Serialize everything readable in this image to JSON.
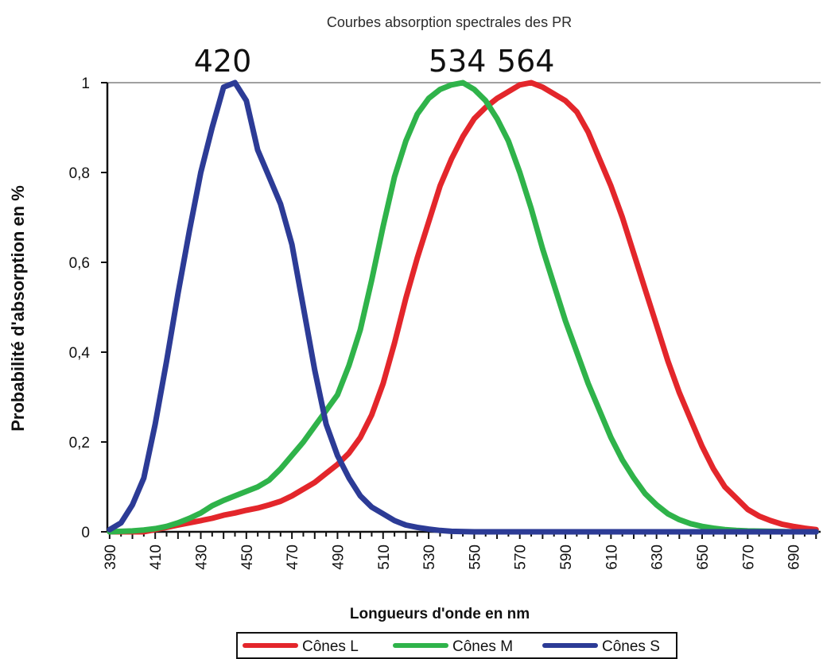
{
  "chart_data": {
    "type": "line",
    "title": "Courbes absorption spectrales des PR",
    "xlabel": "Longueurs d'onde en nm",
    "ylabel": "Probabilité d'absorption en %",
    "xlim": [
      389,
      702
    ],
    "ylim": [
      0,
      1
    ],
    "x_ticks": [
      "390",
      "410",
      "430",
      "450",
      "470",
      "490",
      "510",
      "530",
      "550",
      "570",
      "590",
      "610",
      "630",
      "650",
      "670",
      "690"
    ],
    "y_ticks": [
      "0",
      "0,2",
      "0,4",
      "0,6",
      "0,8",
      "1"
    ],
    "y_tick_values": [
      0,
      0.2,
      0.4,
      0.6,
      0.8,
      1
    ],
    "grid": false,
    "legend_position": "bottom",
    "peak_labels": [
      {
        "label": "420",
        "x": 441
      },
      {
        "label": "534",
        "x": 544
      },
      {
        "label": "564",
        "x": 574
      }
    ],
    "series": [
      {
        "name": "Cônes L",
        "color": "#e3262b",
        "points": [
          [
            390,
            0
          ],
          [
            395,
            0
          ],
          [
            400,
            0
          ],
          [
            405,
            0
          ],
          [
            410,
            0.005
          ],
          [
            415,
            0.01
          ],
          [
            420,
            0.015
          ],
          [
            425,
            0.02
          ],
          [
            430,
            0.025
          ],
          [
            435,
            0.03
          ],
          [
            440,
            0.037
          ],
          [
            445,
            0.042
          ],
          [
            450,
            0.048
          ],
          [
            455,
            0.053
          ],
          [
            460,
            0.06
          ],
          [
            465,
            0.068
          ],
          [
            470,
            0.08
          ],
          [
            475,
            0.095
          ],
          [
            480,
            0.11
          ],
          [
            485,
            0.13
          ],
          [
            490,
            0.15
          ],
          [
            495,
            0.175
          ],
          [
            500,
            0.21
          ],
          [
            505,
            0.26
          ],
          [
            510,
            0.33
          ],
          [
            515,
            0.42
          ],
          [
            520,
            0.52
          ],
          [
            525,
            0.61
          ],
          [
            530,
            0.69
          ],
          [
            535,
            0.77
          ],
          [
            540,
            0.83
          ],
          [
            545,
            0.88
          ],
          [
            550,
            0.92
          ],
          [
            555,
            0.945
          ],
          [
            560,
            0.965
          ],
          [
            565,
            0.98
          ],
          [
            570,
            0.995
          ],
          [
            575,
            1.0
          ],
          [
            580,
            0.99
          ],
          [
            585,
            0.975
          ],
          [
            590,
            0.96
          ],
          [
            595,
            0.935
          ],
          [
            600,
            0.89
          ],
          [
            605,
            0.83
          ],
          [
            610,
            0.77
          ],
          [
            615,
            0.7
          ],
          [
            620,
            0.62
          ],
          [
            625,
            0.54
          ],
          [
            630,
            0.46
          ],
          [
            635,
            0.38
          ],
          [
            640,
            0.31
          ],
          [
            645,
            0.25
          ],
          [
            650,
            0.19
          ],
          [
            655,
            0.14
          ],
          [
            660,
            0.1
          ],
          [
            665,
            0.075
          ],
          [
            670,
            0.05
          ],
          [
            675,
            0.035
          ],
          [
            680,
            0.025
          ],
          [
            685,
            0.017
          ],
          [
            690,
            0.012
          ],
          [
            695,
            0.008
          ],
          [
            700,
            0.005
          ]
        ]
      },
      {
        "name": "Cônes M",
        "color": "#2fb34a",
        "points": [
          [
            390,
            0
          ],
          [
            395,
            0.001
          ],
          [
            400,
            0.002
          ],
          [
            405,
            0.004
          ],
          [
            410,
            0.007
          ],
          [
            415,
            0.012
          ],
          [
            420,
            0.02
          ],
          [
            425,
            0.03
          ],
          [
            430,
            0.042
          ],
          [
            435,
            0.058
          ],
          [
            440,
            0.07
          ],
          [
            445,
            0.08
          ],
          [
            450,
            0.09
          ],
          [
            455,
            0.1
          ],
          [
            460,
            0.115
          ],
          [
            465,
            0.14
          ],
          [
            470,
            0.17
          ],
          [
            475,
            0.2
          ],
          [
            480,
            0.235
          ],
          [
            485,
            0.27
          ],
          [
            490,
            0.305
          ],
          [
            495,
            0.37
          ],
          [
            500,
            0.45
          ],
          [
            505,
            0.56
          ],
          [
            510,
            0.68
          ],
          [
            515,
            0.79
          ],
          [
            520,
            0.87
          ],
          [
            525,
            0.93
          ],
          [
            530,
            0.965
          ],
          [
            535,
            0.985
          ],
          [
            540,
            0.995
          ],
          [
            545,
            1.0
          ],
          [
            550,
            0.985
          ],
          [
            555,
            0.96
          ],
          [
            560,
            0.92
          ],
          [
            565,
            0.87
          ],
          [
            570,
            0.8
          ],
          [
            575,
            0.72
          ],
          [
            580,
            0.63
          ],
          [
            585,
            0.55
          ],
          [
            590,
            0.47
          ],
          [
            595,
            0.4
          ],
          [
            600,
            0.33
          ],
          [
            605,
            0.27
          ],
          [
            610,
            0.21
          ],
          [
            615,
            0.16
          ],
          [
            620,
            0.12
          ],
          [
            625,
            0.085
          ],
          [
            630,
            0.06
          ],
          [
            635,
            0.04
          ],
          [
            640,
            0.027
          ],
          [
            645,
            0.018
          ],
          [
            650,
            0.012
          ],
          [
            655,
            0.008
          ],
          [
            660,
            0.005
          ],
          [
            665,
            0.003
          ],
          [
            670,
            0.002
          ],
          [
            680,
            0.001
          ],
          [
            690,
            0
          ],
          [
            700,
            0
          ]
        ]
      },
      {
        "name": "Cônes S",
        "color": "#2c3b96",
        "points": [
          [
            390,
            0.005
          ],
          [
            395,
            0.02
          ],
          [
            400,
            0.06
          ],
          [
            405,
            0.12
          ],
          [
            410,
            0.24
          ],
          [
            415,
            0.38
          ],
          [
            420,
            0.53
          ],
          [
            425,
            0.67
          ],
          [
            430,
            0.8
          ],
          [
            435,
            0.9
          ],
          [
            440,
            0.99
          ],
          [
            445,
            1.0
          ],
          [
            450,
            0.96
          ],
          [
            455,
            0.85
          ],
          [
            460,
            0.79
          ],
          [
            465,
            0.73
          ],
          [
            470,
            0.64
          ],
          [
            475,
            0.5
          ],
          [
            480,
            0.36
          ],
          [
            485,
            0.24
          ],
          [
            490,
            0.17
          ],
          [
            495,
            0.12
          ],
          [
            500,
            0.08
          ],
          [
            505,
            0.055
          ],
          [
            510,
            0.04
          ],
          [
            515,
            0.025
          ],
          [
            520,
            0.015
          ],
          [
            525,
            0.01
          ],
          [
            530,
            0.006
          ],
          [
            535,
            0.003
          ],
          [
            540,
            0.001
          ],
          [
            550,
            0
          ],
          [
            560,
            0
          ],
          [
            580,
            0
          ],
          [
            600,
            0
          ],
          [
            620,
            0
          ],
          [
            640,
            0
          ],
          [
            660,
            0
          ],
          [
            680,
            0
          ],
          [
            700,
            0
          ]
        ]
      }
    ]
  }
}
